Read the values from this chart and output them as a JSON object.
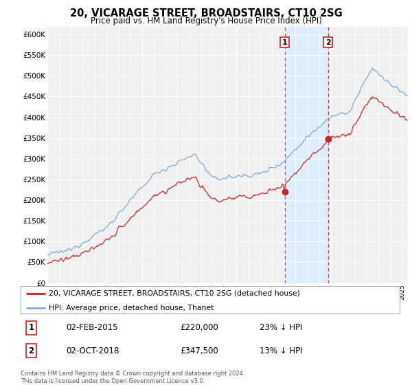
{
  "title": "20, VICARAGE STREET, BROADSTAIRS, CT10 2SG",
  "subtitle": "Price paid vs. HM Land Registry's House Price Index (HPI)",
  "legend_line1": "20, VICARAGE STREET, BROADSTAIRS, CT10 2SG (detached house)",
  "legend_line2": "HPI: Average price, detached house, Thanet",
  "transaction1_date": "02-FEB-2015",
  "transaction1_price": "£220,000",
  "transaction1_pct": "23% ↓ HPI",
  "transaction1_year": 2015.08,
  "transaction1_value": 220000,
  "transaction2_date": "02-OCT-2018",
  "transaction2_price": "£347,500",
  "transaction2_pct": "13% ↓ HPI",
  "transaction2_year": 2018.75,
  "transaction2_value": 347500,
  "hpi_color": "#7aaadd",
  "price_color": "#cc2222",
  "vline_color": "#cc4444",
  "shade_color": "#ddeeff",
  "footer": "Contains HM Land Registry data © Crown copyright and database right 2024.\nThis data is licensed under the Open Government Licence v3.0.",
  "ylim_min": 0,
  "ylim_max": 600000,
  "yticks": [
    0,
    50000,
    100000,
    150000,
    200000,
    250000,
    300000,
    350000,
    400000,
    450000,
    500000,
    550000,
    600000
  ],
  "xlim_min": 1995.0,
  "xlim_max": 2025.5,
  "background_color": "#ffffff",
  "plot_bg_color": "#f0f0f0"
}
